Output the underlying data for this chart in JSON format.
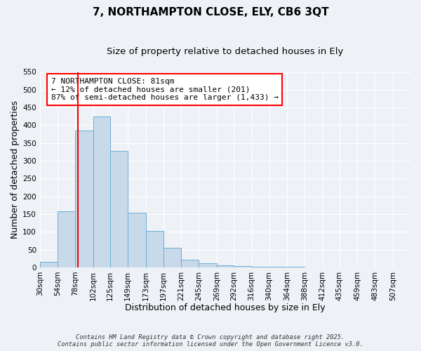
{
  "title": "7, NORTHAMPTON CLOSE, ELY, CB6 3QT",
  "subtitle": "Size of property relative to detached houses in Ely",
  "xlabel": "Distribution of detached houses by size in Ely",
  "ylabel": "Number of detached properties",
  "bin_labels": [
    "30sqm",
    "54sqm",
    "78sqm",
    "102sqm",
    "125sqm",
    "149sqm",
    "173sqm",
    "197sqm",
    "221sqm",
    "245sqm",
    "269sqm",
    "292sqm",
    "316sqm",
    "340sqm",
    "364sqm",
    "388sqm",
    "412sqm",
    "435sqm",
    "459sqm",
    "483sqm",
    "507sqm"
  ],
  "bin_edges": [
    30,
    54,
    78,
    102,
    125,
    149,
    173,
    197,
    221,
    245,
    269,
    292,
    316,
    340,
    364,
    388,
    412,
    435,
    459,
    483,
    507,
    531
  ],
  "bar_heights": [
    15,
    158,
    385,
    425,
    328,
    153,
    103,
    55,
    22,
    12,
    5,
    3,
    2,
    1,
    1,
    0,
    0,
    0,
    0,
    0,
    0
  ],
  "bar_fill": "#c8daea",
  "bar_edge": "#6aaed6",
  "property_line_x": 81,
  "property_line_color": "red",
  "ylim": [
    0,
    550
  ],
  "yticks": [
    0,
    50,
    100,
    150,
    200,
    250,
    300,
    350,
    400,
    450,
    500,
    550
  ],
  "annotation_box_text": "7 NORTHAMPTON CLOSE: 81sqm\n← 12% of detached houses are smaller (201)\n87% of semi-detached houses are larger (1,433) →",
  "background_color": "#eef2f7",
  "grid_color": "#ffffff",
  "footer_line1": "Contains HM Land Registry data © Crown copyright and database right 2025.",
  "footer_line2": "Contains public sector information licensed under the Open Government Licence v3.0.",
  "title_fontsize": 11,
  "subtitle_fontsize": 9.5,
  "axis_label_fontsize": 9,
  "tick_fontsize": 7.5,
  "annotation_fontsize": 8
}
